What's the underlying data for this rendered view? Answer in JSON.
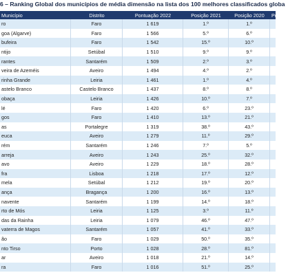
{
  "header": {
    "title": "6 – Ranking Global dos municípios de média dimensão na lista dos 100 melhores classificados globa"
  },
  "table": {
    "columns": [
      "Município",
      "Distrito",
      "Pontuação 2022",
      "Posição 2021",
      "Posição 2020",
      "Posi"
    ],
    "rows": [
      [
        "ro",
        "Faro",
        "1 619",
        "1.º",
        "1.º"
      ],
      [
        "goa (Algarve)",
        "Faro",
        "1 566",
        "5.º",
        "6.º"
      ],
      [
        "bufeira",
        "Faro",
        "1 542",
        "15.º",
        "10.º"
      ],
      [
        "ntijo",
        "Setúbal",
        "1 510",
        "9.º",
        "9.º"
      ],
      [
        "rantes",
        "Santarém",
        "1 509",
        "2.º",
        "3.º"
      ],
      [
        "veira de Azeméis",
        "Aveiro",
        "1 494",
        "4.º",
        "2.º"
      ],
      [
        "rinha Grande",
        "Leiria",
        "1 461",
        "1.º",
        "4.º"
      ],
      [
        "astelo Branco",
        "Castelo Branco",
        "1 437",
        "8.º",
        "8.º"
      ],
      [
        "obaça",
        "Leiria",
        "1 426",
        "10.º",
        "7.º"
      ],
      [
        "lé",
        "Faro",
        "1 420",
        "6.º",
        "23.º"
      ],
      [
        "gos",
        "Faro",
        "1 410",
        "13.º",
        "21.º"
      ],
      [
        "as",
        "Portalegre",
        "1 319",
        "38.º",
        "43.º"
      ],
      [
        "euca",
        "Aveiro",
        "1 279",
        "11.º",
        "29.º"
      ],
      [
        "rém",
        "Santarém",
        "1 246",
        "7.º",
        "5.º"
      ],
      [
        "arreja",
        "Aveiro",
        "1 243",
        "25.º",
        "32.º"
      ],
      [
        "avo",
        "Aveiro",
        "1 229",
        "18.º",
        "28.º"
      ],
      [
        "fra",
        "Lisboa",
        "1 218",
        "17.º",
        "12.º"
      ],
      [
        "mela",
        "Setúbal",
        "1 212",
        "19.º",
        "20.º"
      ],
      [
        "ança",
        "Bragança",
        "1 200",
        "16.º",
        "13.º"
      ],
      [
        "navente",
        "Santarém",
        "1 199",
        "14.º",
        "18.º"
      ],
      [
        "rto de Mós",
        "Leiria",
        "1 125",
        "3.º",
        "11.º"
      ],
      [
        "das da Rainha",
        "Leiria",
        "1 079",
        "46.º",
        "47.º"
      ],
      [
        "vaterra de Magos",
        "Santarém",
        "1 057",
        "41.º",
        "33.º"
      ],
      [
        "ão",
        "Faro",
        "1 029",
        "50.º",
        "35.º"
      ],
      [
        "nto Tirso",
        "Porto",
        "1 028",
        "28.º",
        "81.º"
      ],
      [
        "ar",
        "Aveiro",
        "1 018",
        "21.º",
        "14.º"
      ],
      [
        "ra",
        "Faro",
        "1 016",
        "51.º",
        "25.º"
      ]
    ]
  }
}
